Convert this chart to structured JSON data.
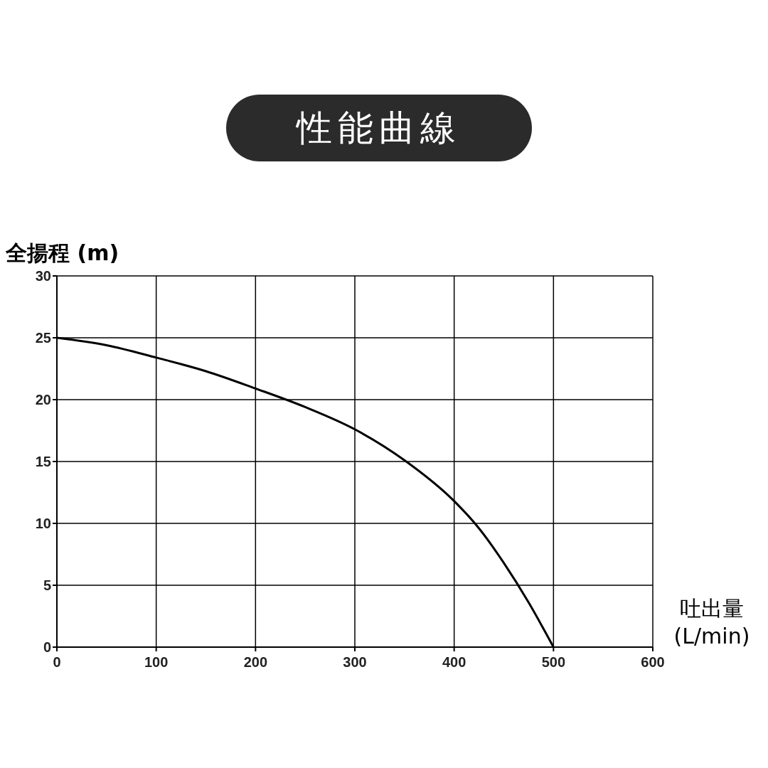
{
  "chart_data": {
    "type": "line",
    "title": "性能曲線",
    "xlabel": "吐出量 (L/min)",
    "ylabel": "全揚程 (m)",
    "x": [
      0,
      50,
      100,
      150,
      200,
      250,
      300,
      350,
      400,
      425,
      450,
      475,
      500
    ],
    "series": [
      {
        "color": "#000000",
        "values": [
          25,
          24.4,
          23.4,
          22.3,
          20.9,
          19.4,
          17.6,
          15.1,
          11.8,
          9.6,
          6.8,
          3.6,
          0
        ]
      }
    ],
    "xlim": [
      0,
      600
    ],
    "xticks": [
      0,
      100,
      200,
      300,
      400,
      500,
      600
    ],
    "ylim": [
      0,
      30
    ],
    "yticks": [
      0,
      5,
      10,
      15,
      20,
      25,
      30
    ],
    "grid": true
  }
}
